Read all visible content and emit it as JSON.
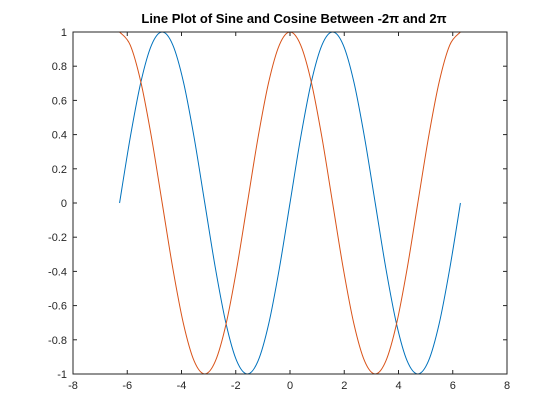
{
  "chart_data": {
    "type": "line",
    "title": "Line Plot of Sine and Cosine Between -2π and 2π",
    "xlabel": "",
    "ylabel": "",
    "xlim": [
      -8,
      8
    ],
    "ylim": [
      -1,
      1
    ],
    "xticks": [
      -8,
      -6,
      -4,
      -2,
      0,
      2,
      4,
      6,
      8
    ],
    "yticks": [
      -1,
      -0.8,
      -0.6,
      -0.4,
      -0.2,
      0,
      0.2,
      0.4,
      0.6,
      0.8,
      1
    ],
    "grid": false,
    "legend": "none",
    "series": [
      {
        "color": "#0072BD",
        "x": [
          -6.2832,
          -5.8905,
          -5.4978,
          -5.1051,
          -4.7124,
          -4.3197,
          -3.927,
          -3.5343,
          -3.1416,
          -2.7489,
          -2.3562,
          -1.9635,
          -1.5708,
          -1.1781,
          -0.7854,
          -0.3927,
          0,
          0.3927,
          0.7854,
          1.1781,
          1.5708,
          1.9635,
          2.3562,
          2.7489,
          3.1416,
          3.5343,
          3.927,
          4.3197,
          4.7124,
          5.1051,
          5.4978,
          5.8905,
          6.2832
        ],
        "y": [
          0,
          0.3827,
          0.7071,
          0.9239,
          1,
          0.9239,
          0.7071,
          0.3827,
          0,
          -0.3827,
          -0.7071,
          -0.9239,
          -1,
          -0.9239,
          -0.7071,
          -0.3827,
          0,
          0.3827,
          0.7071,
          0.9239,
          1,
          0.9239,
          0.7071,
          0.3827,
          0,
          -0.3827,
          -0.7071,
          -0.9239,
          -1,
          -0.9239,
          -0.7071,
          -0.3827,
          0
        ]
      },
      {
        "color": "#D95319",
        "x": [
          -6.2832,
          -5.8905,
          -5.4978,
          -5.1051,
          -4.7124,
          -4.3197,
          -3.927,
          -3.5343,
          -3.1416,
          -2.7489,
          -2.3562,
          -1.9635,
          -1.5708,
          -1.1781,
          -0.7854,
          -0.3927,
          0,
          0.3927,
          0.7854,
          1.1781,
          1.5708,
          1.9635,
          2.3562,
          2.7489,
          3.1416,
          3.5343,
          3.927,
          4.3197,
          4.7124,
          5.1051,
          5.4978,
          5.8905,
          6.2832
        ],
        "y": [
          1,
          0.9239,
          0.7071,
          0.3827,
          0,
          -0.3827,
          -0.7071,
          -0.9239,
          -1,
          -0.9239,
          -0.7071,
          -0.3827,
          0,
          0.3827,
          0.7071,
          0.9239,
          1,
          0.9239,
          0.7071,
          0.3827,
          0,
          -0.3827,
          -0.7071,
          -0.9239,
          -1,
          -0.9239,
          -0.7071,
          -0.3827,
          0,
          0.3827,
          0.7071,
          0.9239,
          1
        ]
      }
    ]
  },
  "colors": {
    "axis": "#262626",
    "background": "#ffffff"
  }
}
